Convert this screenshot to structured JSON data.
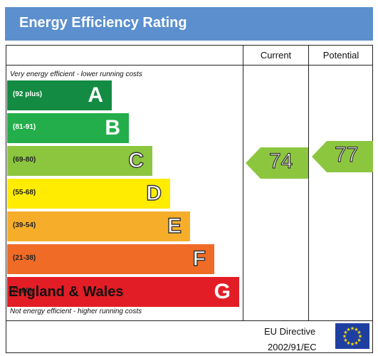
{
  "header": {
    "title": "Energy Efficiency Rating"
  },
  "columns": {
    "current": "Current",
    "potential": "Potential"
  },
  "notes": {
    "top": "Very energy efficient - lower running costs",
    "bottom": "Not energy efficient - higher running costs"
  },
  "bands": [
    {
      "range": "(92 plus)",
      "letter": "A",
      "color": "#138b43"
    },
    {
      "range": "(81-91)",
      "letter": "B",
      "color": "#23ae4b"
    },
    {
      "range": "(69-80)",
      "letter": "C",
      "color": "#8cc63f"
    },
    {
      "range": "(55-68)",
      "letter": "D",
      "color": "#ffec00"
    },
    {
      "range": "(39-54)",
      "letter": "E",
      "color": "#f6ae2a"
    },
    {
      "range": "(21-38)",
      "letter": "F",
      "color": "#ef6b26"
    },
    {
      "range": "(1-20)",
      "letter": "G",
      "color": "#e31d25"
    }
  ],
  "ratings": {
    "current": {
      "value": "74",
      "color": "#8cc63f"
    },
    "potential": {
      "value": "77",
      "color": "#8cc63f"
    }
  },
  "footer": {
    "region": "England & Wales",
    "directive_line1": "EU Directive",
    "directive_line2": "2002/91/EC",
    "flag_color": "#1f3fa0",
    "star_color": "#ffdd00"
  }
}
